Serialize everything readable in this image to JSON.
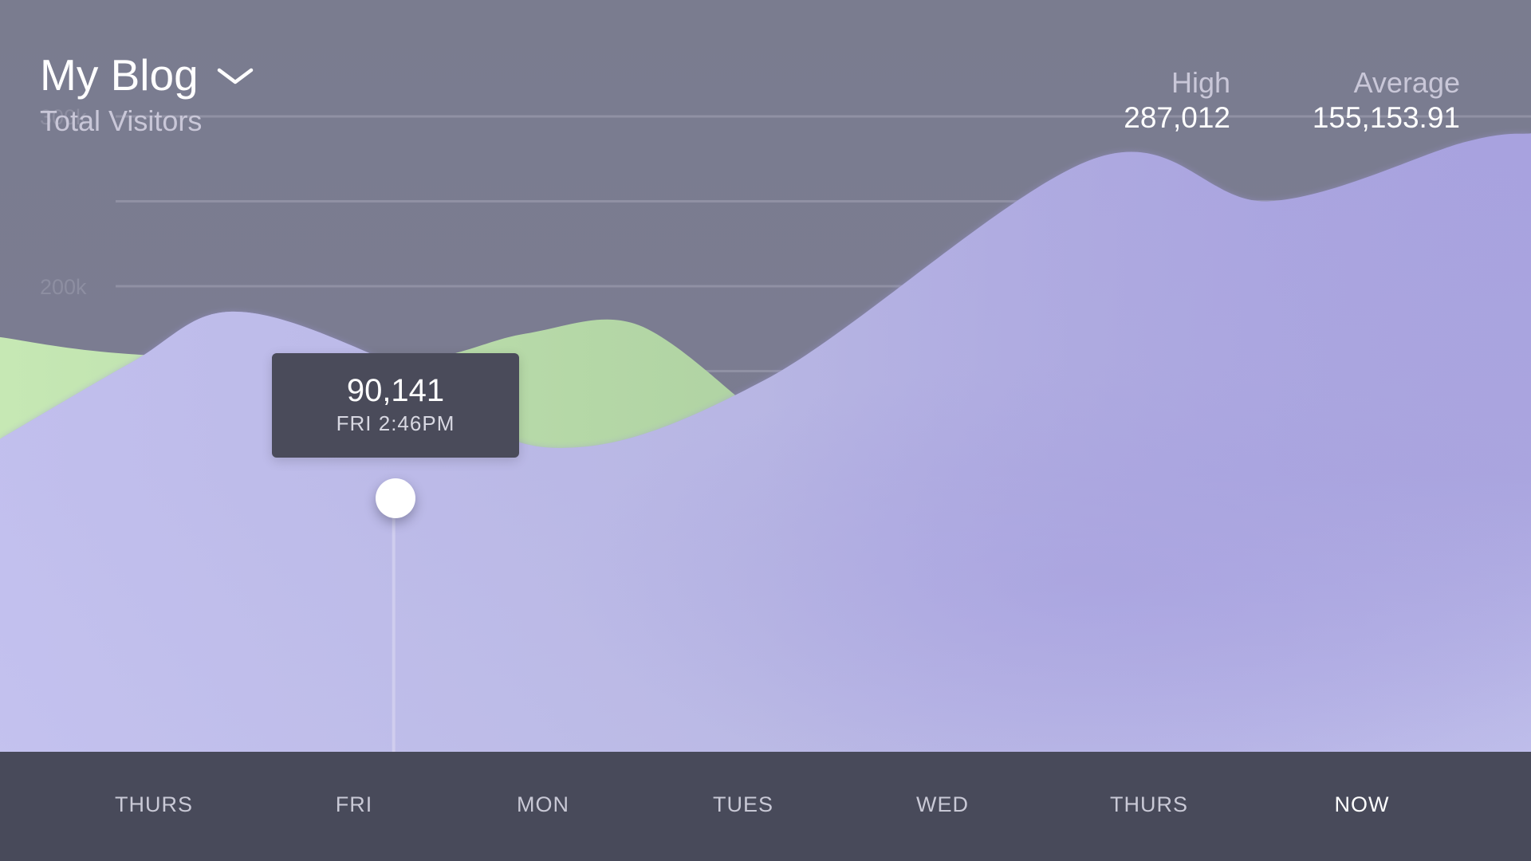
{
  "header": {
    "title": "My Blog",
    "subtitle": "Total Visitors",
    "dropdown_icon": "chevron-down-icon"
  },
  "stats": {
    "high_label": "High",
    "high_value": "287,012",
    "average_label": "Average",
    "average_value": "155,153.91"
  },
  "tooltip": {
    "value": "90,141",
    "time": "FRI 2:46PM"
  },
  "colors": {
    "background": "#7a7c8f",
    "primary_area": "#aaa4df",
    "primary_area_light": "#b9b8e3",
    "secondary_area": "#b4d4a5",
    "axis_bar": "#484a5a",
    "tooltip_bg": "#4a4b5a"
  },
  "chart_data": {
    "type": "area",
    "title": "",
    "ytick_labels": [
      "300k",
      "200k"
    ],
    "yticks": [
      300000,
      250000,
      200000,
      150000
    ],
    "ylim": [
      -20000,
      315000
    ],
    "xlim": [
      0,
      7
    ],
    "x_categories": [
      "THURS",
      "FRI",
      "MON",
      "TUES",
      "WED",
      "THURS",
      "NOW"
    ],
    "grid": true,
    "series": [
      {
        "color": "#b4d4a5",
        "x": [
          0,
          0.6,
          1.8,
          2.4,
          2.9,
          3.4
        ],
        "values": [
          170000,
          160000,
          155000,
          172000,
          178000,
          132000
        ]
      },
      {
        "color": "#aaa4df",
        "x": [
          0,
          0.6,
          1.05,
          1.7,
          2.5,
          3.5,
          5.0,
          5.8,
          6.7,
          7.0
        ],
        "values": [
          110000,
          155000,
          185000,
          160000,
          105000,
          145000,
          275000,
          250000,
          285000,
          290000
        ]
      }
    ],
    "highlight": {
      "x": 1.8,
      "value": 90141,
      "label": "FRI 2:46PM"
    }
  }
}
